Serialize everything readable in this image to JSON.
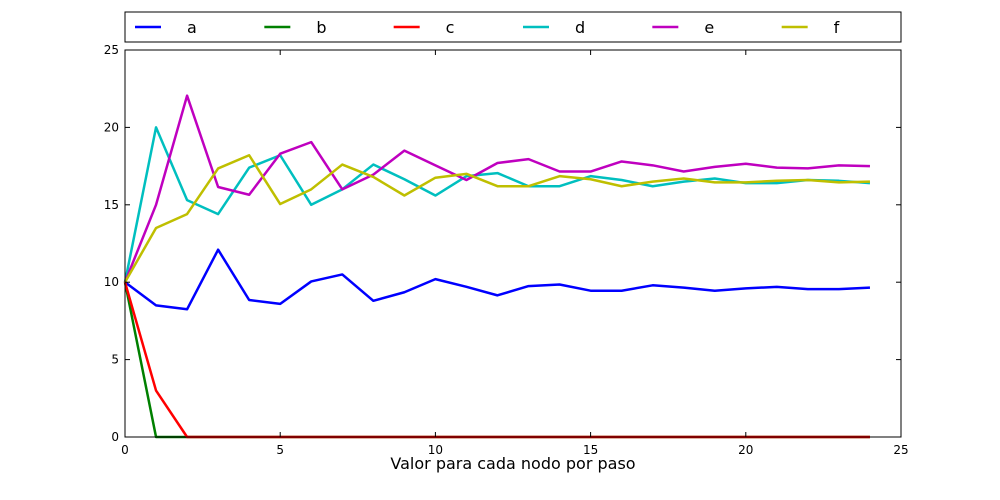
{
  "chart_data": {
    "type": "line",
    "title": "",
    "xlabel": "Valor para cada nodo por paso",
    "ylabel": "",
    "xlim": [
      0,
      25
    ],
    "ylim": [
      0,
      25
    ],
    "xticks": [
      0,
      5,
      10,
      15,
      20,
      25
    ],
    "yticks": [
      0,
      5,
      10,
      15,
      20,
      25
    ],
    "grid": false,
    "legend": "top, outside plot, single row",
    "x": [
      0,
      1,
      2,
      3,
      4,
      5,
      6,
      7,
      8,
      9,
      10,
      11,
      12,
      13,
      14,
      15,
      16,
      17,
      18,
      19,
      20,
      21,
      22,
      23,
      24
    ],
    "series": [
      {
        "name": "a",
        "color": "#0000ff",
        "values": [
          10,
          8.5,
          8.25,
          12.1,
          8.85,
          8.6,
          10.05,
          10.5,
          8.8,
          9.35,
          10.2,
          9.7,
          9.15,
          9.75,
          9.85,
          9.45,
          9.45,
          9.8,
          9.65,
          9.45,
          9.6,
          9.7,
          9.55,
          9.55,
          9.65
        ]
      },
      {
        "name": "b",
        "color": "#008000",
        "values": [
          10,
          0,
          0,
          0,
          0,
          0,
          0,
          0,
          0,
          0,
          0,
          0,
          0,
          0,
          0,
          0,
          0,
          0,
          0,
          0,
          0,
          0,
          0,
          0,
          0
        ]
      },
      {
        "name": "c",
        "color": "#ff0000",
        "values": [
          10,
          3,
          0,
          0,
          0,
          0,
          0,
          0,
          0,
          0,
          0,
          0,
          0,
          0,
          0,
          0,
          0,
          0,
          0,
          0,
          0,
          0,
          0,
          0,
          0
        ]
      },
      {
        "name": "d",
        "color": "#00bfbf",
        "values": [
          10,
          20,
          15.3,
          14.4,
          17.4,
          18.2,
          15,
          16,
          17.6,
          16.65,
          15.6,
          16.85,
          17.05,
          16.2,
          16.2,
          16.85,
          16.6,
          16.2,
          16.5,
          16.7,
          16.4,
          16.4,
          16.6,
          16.55,
          16.4
        ]
      },
      {
        "name": "e",
        "color": "#bf00bf",
        "values": [
          10,
          15,
          22.05,
          16.15,
          15.65,
          18.3,
          19.05,
          16,
          16.95,
          18.5,
          17.55,
          16.6,
          17.7,
          17.95,
          17.15,
          17.15,
          17.8,
          17.55,
          17.15,
          17.45,
          17.65,
          17.4,
          17.35,
          17.55,
          17.5
        ]
      },
      {
        "name": "f",
        "color": "#bfbf00",
        "values": [
          10,
          13.5,
          14.4,
          17.35,
          18.2,
          15.05,
          16,
          17.6,
          16.8,
          15.6,
          16.75,
          17,
          16.2,
          16.2,
          16.85,
          16.65,
          16.2,
          16.5,
          16.7,
          16.45,
          16.45,
          16.55,
          16.6,
          16.45,
          16.5
        ]
      }
    ]
  }
}
